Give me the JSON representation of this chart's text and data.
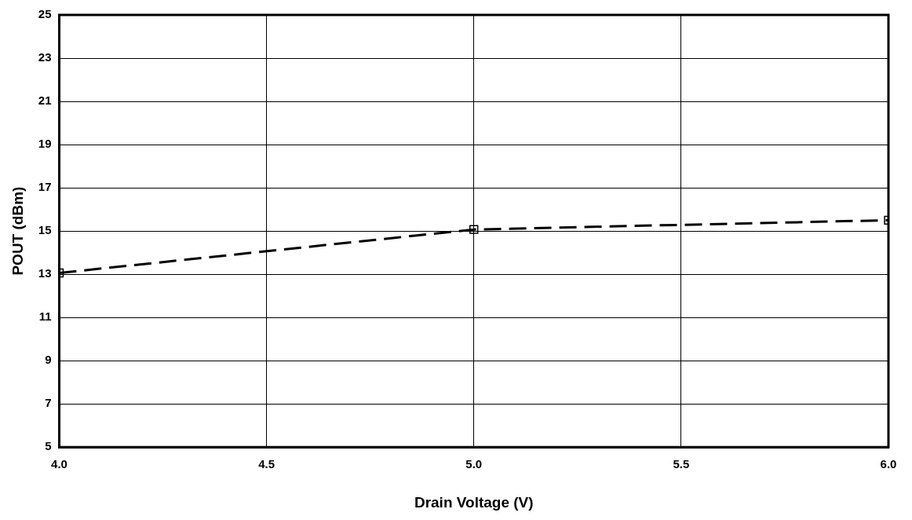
{
  "chart_data": {
    "type": "line",
    "xlabel": "Drain Voltage (V)",
    "ylabel": "POUT (dBm)",
    "x": [
      4.0,
      5.0,
      6.0
    ],
    "series": [
      {
        "color": "#000000",
        "values": [
          13.06,
          15.07,
          15.5
        ]
      }
    ],
    "xlim": [
      4,
      6
    ],
    "xticks": [
      {
        "value": 4,
        "label": "4.0"
      },
      {
        "value": 4.5,
        "label": "4.5"
      },
      {
        "value": 5,
        "label": "5.0"
      },
      {
        "value": 5.5,
        "label": "5.5"
      },
      {
        "value": 6,
        "label": "6.0"
      }
    ],
    "ylim": [
      5,
      25
    ],
    "yticks": [
      5,
      7,
      9,
      11,
      13,
      15,
      17,
      19,
      21,
      23,
      25
    ],
    "grid": true,
    "legend": false,
    "marker": "square",
    "line_style": "dashed"
  }
}
